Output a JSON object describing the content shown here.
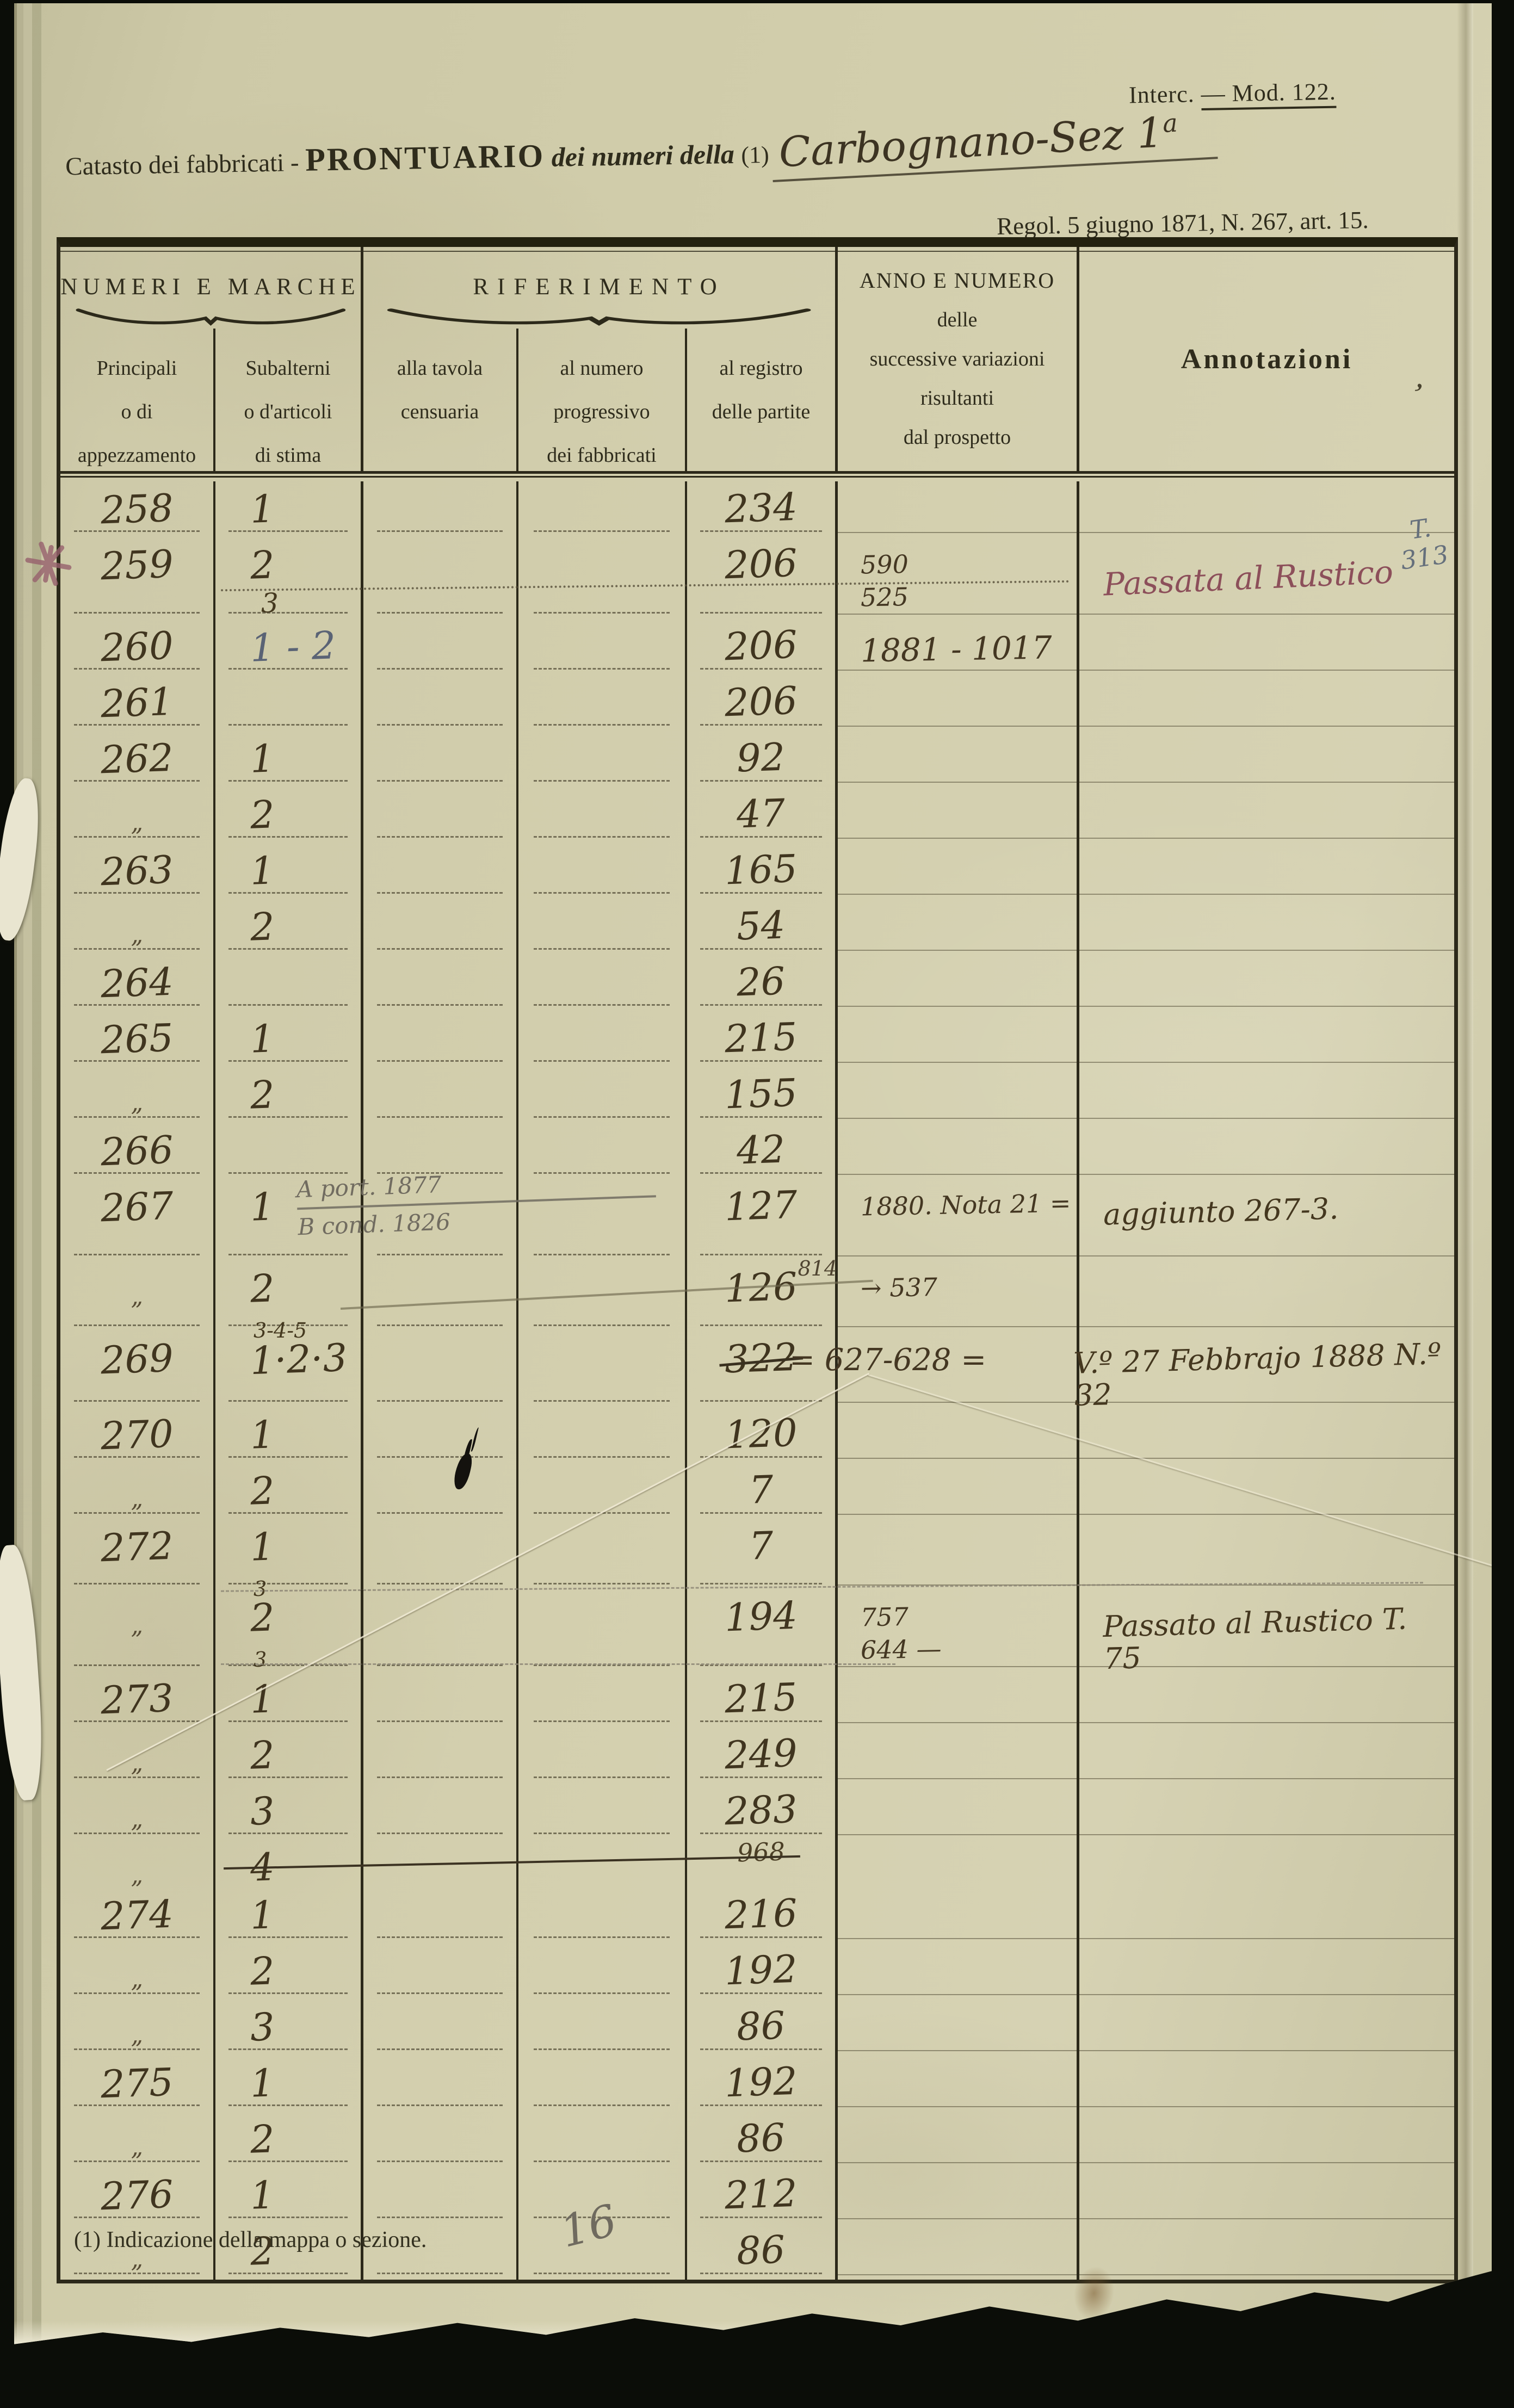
{
  "page": {
    "header": {
      "interc_left": "Interc.",
      "interc_right": "— Mod. 122.",
      "title_pre": "Catasto dei fabbricati - ",
      "title_main": "PRONTUARIO",
      "title_italic": " dei numeri della ",
      "title_ref": "(1)",
      "title_hand": "Carbognano-Sez 1",
      "title_hand_sup": "a",
      "regol": "Regol. 5 giugno 1871, N. 267, art. 15."
    },
    "table": {
      "groups": {
        "numeri": "NUMERI E MARCHE",
        "riferimento": "RIFERIMENTO"
      },
      "col_headers": [
        {
          "lines": [
            "Principali",
            "o di",
            "appezzamento"
          ]
        },
        {
          "lines": [
            "Subalterni",
            "o d'articoli",
            "di stima"
          ]
        },
        {
          "lines": [
            "alla tavola",
            "censuaria"
          ]
        },
        {
          "lines": [
            "al numero",
            "progressivo",
            "dei fabbricati"
          ]
        },
        {
          "lines": [
            "al registro",
            "delle partite"
          ]
        }
      ],
      "anno_header": [
        "ANNO E NUMERO",
        "delle",
        "successive variazioni",
        "risultanti",
        "dal prospetto"
      ],
      "annotazioni_label": "Annotazioni",
      "stray_mark": ",",
      "rows": [
        {
          "p": "258",
          "s": "1",
          "reg": "234"
        },
        {
          "p": "259",
          "s": "2",
          "s2": "3",
          "reg": "206",
          "anno": [
            "590",
            "525"
          ],
          "annot": {
            "text": "Passata al Rustico",
            "style": "red"
          },
          "side": [
            "T.",
            "313"
          ],
          "tall": true,
          "dotline": true
        },
        {
          "p": "260",
          "s": "1 - 2",
          "s_style": "blue",
          "reg": "206",
          "anno": [
            "1881 - 1017"
          ],
          "anno_big": true
        },
        {
          "p": "261",
          "reg": "206"
        },
        {
          "p": "262",
          "s": "1",
          "reg": "92"
        },
        {
          "p": "„",
          "s": "2",
          "reg": "47"
        },
        {
          "p": "263",
          "s": "1",
          "reg": "165"
        },
        {
          "p": "„",
          "s": "2",
          "reg": "54"
        },
        {
          "p": "264",
          "reg": "26"
        },
        {
          "p": "265",
          "s": "1",
          "reg": "215"
        },
        {
          "p": "„",
          "s": "2",
          "reg": "155"
        },
        {
          "p": "266",
          "reg": "42"
        },
        {
          "p": "267",
          "s": "1",
          "s_pencil": [
            "A port. 1877",
            "B cond. 1826"
          ],
          "reg": "127",
          "anno": [
            "1880. Nota 21 ="
          ],
          "annot": {
            "text": "aggiunto 267-3.",
            "style": "sepia"
          },
          "tall": true
        },
        {
          "p": "„",
          "s": "2",
          "s_sub": "3-4-5",
          "reg": "126",
          "reg_sup": "814",
          "anno": [
            "→ 537"
          ]
        },
        {
          "p": "269",
          "s": "1·2·3",
          "reg": "322",
          "reg_struck": true,
          "reg_post": "= 627-628 =",
          "annot": {
            "text": "V.º 27 Febbrajo 1888 N.º 32",
            "style": "sepia shift"
          }
        },
        {
          "p": "270",
          "s": "1",
          "reg": "120"
        },
        {
          "p": "„",
          "s": "2",
          "reg": "7"
        },
        {
          "p": "272",
          "s": "1",
          "s_sub": "3",
          "reg": "7",
          "pencil_line": "full"
        },
        {
          "p": "„",
          "s": "2",
          "s_sub": "3",
          "reg": "194",
          "anno": [
            "757",
            "644 —"
          ],
          "annot": {
            "text": "Passato al Rustico T. 75",
            "style": "sepia"
          },
          "tall": true,
          "pencil_line": "mid"
        },
        {
          "p": "273",
          "s": "1",
          "reg": "215"
        },
        {
          "p": "„",
          "s": "2",
          "reg": "249"
        },
        {
          "p": "„",
          "s": "3",
          "reg": "283"
        },
        {
          "p": "„",
          "s": "4",
          "reg": "968",
          "mini": true,
          "strike": true
        },
        {
          "p": "274",
          "s": "1",
          "reg": "216"
        },
        {
          "p": "„",
          "s": "2",
          "reg": "192"
        },
        {
          "p": "„",
          "s": "3",
          "reg": "86"
        },
        {
          "p": "275",
          "s": "1",
          "reg": "192"
        },
        {
          "p": "„",
          "s": "2",
          "reg": "86"
        },
        {
          "p": "276",
          "s": "1",
          "reg": "212"
        },
        {
          "p": "„",
          "s": "2",
          "reg": "86"
        }
      ]
    },
    "footnote": "(1) Indicazione della mappa o sezione.",
    "pencil_mark": "16",
    "margin_mark": "*",
    "colors": {
      "paper": "#d2ceac",
      "ink": "#2f2c1c",
      "hand": "#40351f",
      "pencil": "#6e695e",
      "red_ink": "#8c4f5a",
      "blue_pencil": "#5a6375"
    }
  }
}
